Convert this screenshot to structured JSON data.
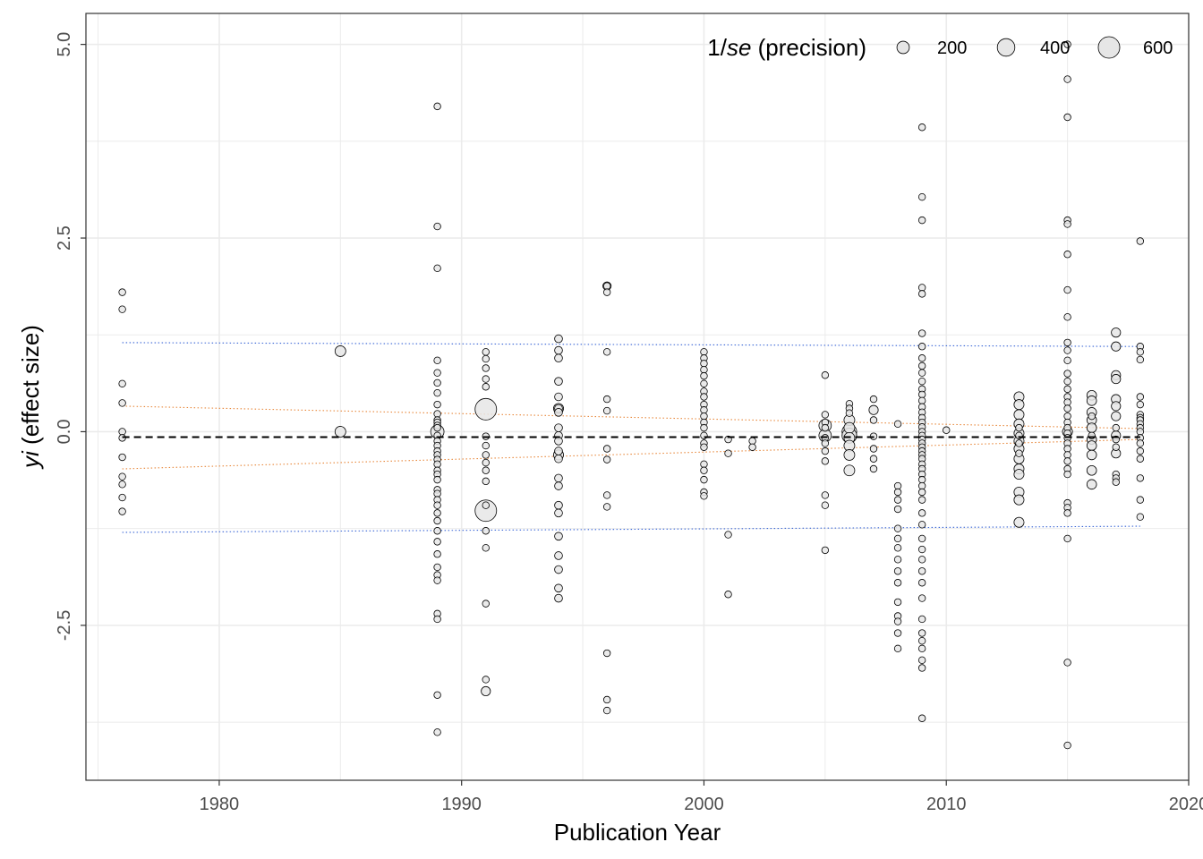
{
  "chart_data": {
    "type": "scatter",
    "xlabel": "Publication Year",
    "ylabel_italic": "yi",
    "ylabel_rest": " (effect size)",
    "xlim": [
      1974.5,
      2020
    ],
    "ylim": [
      -4.5,
      5.4
    ],
    "x_ticks": [
      1980,
      1990,
      2000,
      2010,
      2020
    ],
    "y_ticks": [
      -2.5,
      0.0,
      2.5,
      5.0
    ],
    "y_tick_labels": [
      "-2.5",
      "0.0",
      "2.5",
      "5.0"
    ],
    "grid": true,
    "legend": {
      "placement": "top-right",
      "title_prefix": "1/",
      "title_italic": "se",
      "title_suffix": " (precision)",
      "entries": [
        {
          "label": "200",
          "value": 200
        },
        {
          "label": "400",
          "value": 400
        },
        {
          "label": "600",
          "value": 600
        }
      ]
    },
    "colors": {
      "point_fill": "#e6e6e6",
      "point_stroke": "#000000",
      "mean_line": "#000000",
      "ci_band": "#e8873a",
      "pi_band": "#3a66d6",
      "grid": "#ebebeb"
    },
    "mean_line": {
      "x": [
        1976,
        2018
      ],
      "y": [
        -0.07,
        -0.07
      ]
    },
    "confidence_band": {
      "lower": {
        "x": [
          1976,
          2018
        ],
        "y": [
          -0.48,
          -0.1
        ]
      },
      "upper": {
        "x": [
          1976,
          2018
        ],
        "y": [
          0.33,
          0.04
        ]
      }
    },
    "prediction_band": {
      "lower": {
        "x": [
          1976,
          2018
        ],
        "y": [
          -1.3,
          -1.22
        ]
      },
      "upper": {
        "x": [
          1976,
          2018
        ],
        "y": [
          1.15,
          1.1
        ]
      }
    },
    "points_by_year": [
      {
        "year": 1976,
        "precision": 60,
        "y": [
          1.8,
          1.58,
          0.62,
          0.37,
          0.0,
          -0.08,
          -0.33,
          -0.58,
          -0.68,
          -0.85,
          -1.03
        ]
      },
      {
        "year": 1985,
        "precision": 150,
        "y": [
          1.04,
          0.0
        ]
      },
      {
        "year": 1989,
        "precision": 60,
        "y": [
          4.2,
          2.65,
          2.11,
          0.92,
          0.76,
          0.63,
          0.5,
          0.35,
          0.23,
          0.15,
          0.12,
          0.08,
          0.05,
          -0.05,
          -0.12,
          -0.18,
          -0.25,
          -0.3,
          -0.36,
          -0.42,
          -0.5,
          -0.55,
          -0.62,
          -0.75,
          -0.8,
          -0.88,
          -0.95,
          -1.05,
          -1.15,
          -1.28,
          -1.42,
          -1.58,
          -1.75,
          -1.85,
          -1.92,
          -2.35,
          -2.42,
          -3.4,
          -3.88
        ]
      },
      {
        "year": 1989,
        "precision": 230,
        "y": [
          0.0
        ]
      },
      {
        "year": 1991,
        "precision": 60,
        "y": [
          1.03,
          0.94,
          0.82,
          0.68,
          0.58,
          -0.06,
          -0.18,
          -0.3,
          -0.4,
          -0.5,
          -0.64,
          -0.95,
          -1.28,
          -1.5,
          -2.22,
          -3.2
        ]
      },
      {
        "year": 1991,
        "precision": 110,
        "y": [
          -3.35
        ]
      },
      {
        "year": 1991,
        "precision": 600,
        "y": [
          0.29,
          -1.02
        ]
      },
      {
        "year": 1994,
        "precision": 80,
        "y": [
          1.2,
          1.05,
          0.95,
          0.65,
          0.45,
          0.3,
          0.25,
          0.05,
          -0.05,
          -0.12,
          -0.25,
          -0.35,
          -0.6,
          -0.7,
          -0.95,
          -1.05,
          -1.35,
          -1.6,
          -1.78,
          -2.02,
          -2.15
        ]
      },
      {
        "year": 1994,
        "precision": 130,
        "y": [
          0.3,
          -0.3
        ]
      },
      {
        "year": 1996,
        "precision": 60,
        "y": [
          1.88,
          1.8,
          1.03,
          0.42,
          0.27,
          -0.22,
          -0.36,
          -0.82,
          -0.97,
          -2.86,
          -3.46,
          -3.6
        ]
      },
      {
        "year": 1996,
        "precision": 90,
        "y": [
          1.88
        ]
      },
      {
        "year": 2000,
        "precision": 60,
        "y": [
          1.03,
          0.95,
          0.88,
          0.8,
          0.72,
          0.62,
          0.52,
          0.45,
          0.35,
          0.28,
          0.2,
          0.12,
          0.05,
          -0.05,
          -0.15,
          -0.2,
          -0.42,
          -0.5,
          -0.62,
          -0.78,
          -0.83
        ]
      },
      {
        "year": 2001,
        "precision": 60,
        "y": [
          -0.1,
          -0.28,
          -1.33,
          -2.1
        ]
      },
      {
        "year": 2002,
        "precision": 60,
        "y": [
          -0.12,
          -0.2
        ]
      },
      {
        "year": 2005,
        "precision": 60,
        "y": [
          0.73,
          0.22,
          0.12,
          0.05,
          -0.08,
          -0.15,
          -0.25,
          -0.38,
          -0.82,
          -0.95,
          -1.53
        ]
      },
      {
        "year": 2005,
        "precision": 200,
        "y": [
          0.08,
          -0.05
        ]
      },
      {
        "year": 2006,
        "precision": 60,
        "y": [
          0.36,
          0.3,
          0.24
        ]
      },
      {
        "year": 2006,
        "precision": 150,
        "y": [
          0.15,
          0.05,
          -0.08,
          -0.18,
          -0.3,
          -0.5
        ]
      },
      {
        "year": 2006,
        "precision": 280,
        "y": [
          0.0,
          -0.05
        ]
      },
      {
        "year": 2007,
        "precision": 60,
        "y": [
          0.42,
          0.15,
          -0.06,
          -0.22,
          -0.35,
          -0.48
        ]
      },
      {
        "year": 2007,
        "precision": 110,
        "y": [
          0.28
        ]
      },
      {
        "year": 2008,
        "precision": 60,
        "y": [
          0.1,
          -0.7,
          -0.78,
          -0.88,
          -1.0,
          -1.25,
          -1.38,
          -1.5,
          -1.65,
          -1.8,
          -1.95,
          -2.2,
          -2.38,
          -2.45,
          -2.6,
          -2.8
        ]
      },
      {
        "year": 2009,
        "precision": 60,
        "y": [
          3.93,
          3.03,
          2.73,
          1.86,
          1.78,
          1.27,
          1.1,
          0.95,
          0.85,
          0.76,
          0.65,
          0.55,
          0.48,
          0.4,
          0.32,
          0.25,
          0.18,
          0.12,
          0.06,
          0.0,
          -0.05,
          -0.1,
          -0.15,
          -0.2,
          -0.25,
          -0.3,
          -0.35,
          -0.42,
          -0.48,
          -0.55,
          -0.62,
          -0.7,
          -0.78,
          -0.88,
          -1.05,
          -1.2,
          -1.38,
          -1.52,
          -1.65,
          -1.8,
          -1.95,
          -2.15,
          -2.42,
          -2.6,
          -2.7,
          -2.8,
          -2.95,
          -3.05,
          -3.7
        ]
      },
      {
        "year": 2010,
        "precision": 60,
        "y": [
          0.02
        ]
      },
      {
        "year": 2013,
        "precision": 60,
        "y": [
          0.05,
          -0.05,
          -0.15,
          -0.28
        ]
      },
      {
        "year": 2013,
        "precision": 130,
        "y": [
          0.45,
          0.35,
          0.22,
          0.1,
          -0.02,
          -0.12,
          -0.22,
          -0.35,
          -0.48,
          -0.55,
          -0.78,
          -0.88,
          -1.17
        ]
      },
      {
        "year": 2015,
        "precision": 60,
        "y": [
          5.0,
          4.55,
          4.06,
          2.73,
          2.68,
          2.29,
          1.83,
          1.48,
          1.15,
          1.05,
          0.92,
          0.75,
          0.65,
          0.55,
          0.45,
          0.38,
          0.3,
          0.2,
          0.12,
          0.05,
          -0.02,
          -0.08,
          -0.15,
          -0.22,
          -0.3,
          -0.38,
          -0.48,
          -0.55,
          -0.92,
          -0.98,
          -1.05,
          -1.38,
          -2.98,
          -4.05
        ]
      },
      {
        "year": 2015,
        "precision": 130,
        "y": [
          0.0
        ]
      },
      {
        "year": 2016,
        "precision": 60,
        "y": [
          0.2,
          -0.05
        ]
      },
      {
        "year": 2016,
        "precision": 120,
        "y": [
          0.47,
          0.4,
          0.25,
          0.15,
          0.05,
          -0.1,
          -0.18,
          -0.3,
          -0.5,
          -0.68
        ]
      },
      {
        "year": 2017,
        "precision": 60,
        "y": [
          0.05,
          -0.1,
          -0.2,
          -0.55,
          -0.6,
          -0.65
        ]
      },
      {
        "year": 2017,
        "precision": 110,
        "y": [
          1.28,
          1.1,
          0.73,
          0.68,
          0.42,
          0.33,
          0.2,
          -0.05,
          -0.28
        ]
      },
      {
        "year": 2018,
        "precision": 60,
        "y": [
          2.46,
          1.1,
          1.03,
          0.93,
          0.45,
          0.35,
          0.22,
          0.18,
          0.15,
          0.1,
          0.05,
          0.0,
          -0.08,
          -0.15,
          -0.25,
          -0.35,
          -0.6,
          -0.88,
          -1.1
        ]
      }
    ]
  }
}
